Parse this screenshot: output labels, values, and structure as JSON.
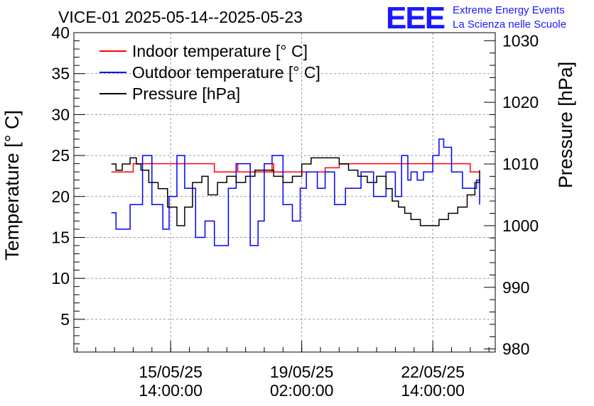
{
  "header": {
    "title": "VICE-01 2025-05-14--2025-05-23",
    "logo_text": "EEE",
    "logo_line1": "Extreme Energy Events",
    "logo_line2": "La Scienza nelle Scuole"
  },
  "chart_data": {
    "type": "line",
    "title": "VICE-01 2025-05-14--2025-05-23",
    "ylabel": "Temperature [° C]",
    "y2label": "Pressure [hPa]",
    "ylim": [
      1,
      40
    ],
    "y2lim": [
      979.5,
      1031.3
    ],
    "ytick_values": [
      5,
      10,
      15,
      20,
      25,
      30,
      35,
      40
    ],
    "y2tick_values": [
      980,
      990,
      1000,
      1010,
      1020,
      1030
    ],
    "xlim_hours": [
      -24,
      246
    ],
    "xticks": [
      {
        "hour": 38,
        "line1": "15/05/25",
        "line2": "14:00:00"
      },
      {
        "hour": 122,
        "line1": "19/05/25",
        "line2": "02:00:00"
      },
      {
        "hour": 206,
        "line1": "22/05/25",
        "line2": "14:00:00"
      }
    ],
    "grid": true,
    "legend": [
      {
        "label": "Indoor temperature [° C]",
        "color": "#ff0000"
      },
      {
        "label": "Outdoor temperature [° C]",
        "color": "#0000ff"
      },
      {
        "label": "Pressure [hPa]",
        "color": "#000000"
      }
    ],
    "series": [
      {
        "name": "Indoor temperature [° C]",
        "axis": "left",
        "color": "#ff0000",
        "x": [
          0,
          10,
          14,
          66,
          66,
          79,
          80,
          81,
          82,
          94,
          96,
          102,
          103,
          104,
          105,
          128,
          137,
          146,
          158,
          182,
          203,
          220,
          230,
          232,
          236
        ],
        "y": [
          23,
          23,
          24,
          24,
          23,
          23,
          24,
          23,
          23,
          23,
          23,
          23,
          24,
          23,
          23,
          23,
          23.5,
          24,
          24,
          24,
          24,
          24,
          23,
          23,
          23
        ]
      },
      {
        "name": "Outdoor temperature [° C]",
        "axis": "left",
        "color": "#0000ff",
        "x": [
          0,
          3,
          8,
          12,
          20,
          26,
          33,
          37,
          42,
          47,
          54,
          60,
          66,
          75,
          80,
          89,
          94,
          98,
          103,
          110,
          116,
          121,
          125,
          132,
          137,
          143,
          150,
          160,
          168,
          176,
          182,
          186,
          190,
          192,
          196,
          200,
          202,
          206,
          210,
          213,
          218,
          221,
          225,
          230,
          234,
          236
        ],
        "y": [
          18,
          16,
          16,
          19,
          25,
          19,
          16,
          20,
          25,
          21,
          15,
          17,
          14,
          21,
          24,
          14,
          17,
          24,
          25,
          19,
          17,
          21,
          23,
          21,
          23,
          19,
          21,
          23,
          20,
          23,
          20,
          25,
          22,
          23,
          22,
          23,
          23,
          25,
          27,
          26,
          23,
          23,
          21,
          21,
          22,
          19
        ]
      },
      {
        "name": "Pressure [hPa]",
        "axis": "right",
        "color": "#000000",
        "x": [
          0,
          3,
          7,
          12,
          16,
          19,
          24,
          30,
          36,
          42,
          47,
          52,
          58,
          62,
          68,
          74,
          80,
          86,
          92,
          98,
          104,
          110,
          116,
          122,
          128,
          134,
          140,
          146,
          152,
          158,
          164,
          170,
          176,
          180,
          184,
          188,
          192,
          198,
          204,
          210,
          216,
          222,
          228,
          233,
          236
        ],
        "y": [
          1010,
          1009,
          1010,
          1011,
          1010,
          1009,
          1007,
          1006,
          1003,
          1000,
          1003,
          1007,
          1008,
          1005,
          1007,
          1008,
          1007,
          1008,
          1009,
          1009,
          1008,
          1007,
          1008,
          1010,
          1011,
          1011,
          1011,
          1010,
          1009,
          1008,
          1007,
          1008,
          1006,
          1004,
          1003,
          1002,
          1001,
          1000,
          1000,
          1001,
          1002,
          1003,
          1005,
          1007,
          1009
        ]
      }
    ]
  }
}
